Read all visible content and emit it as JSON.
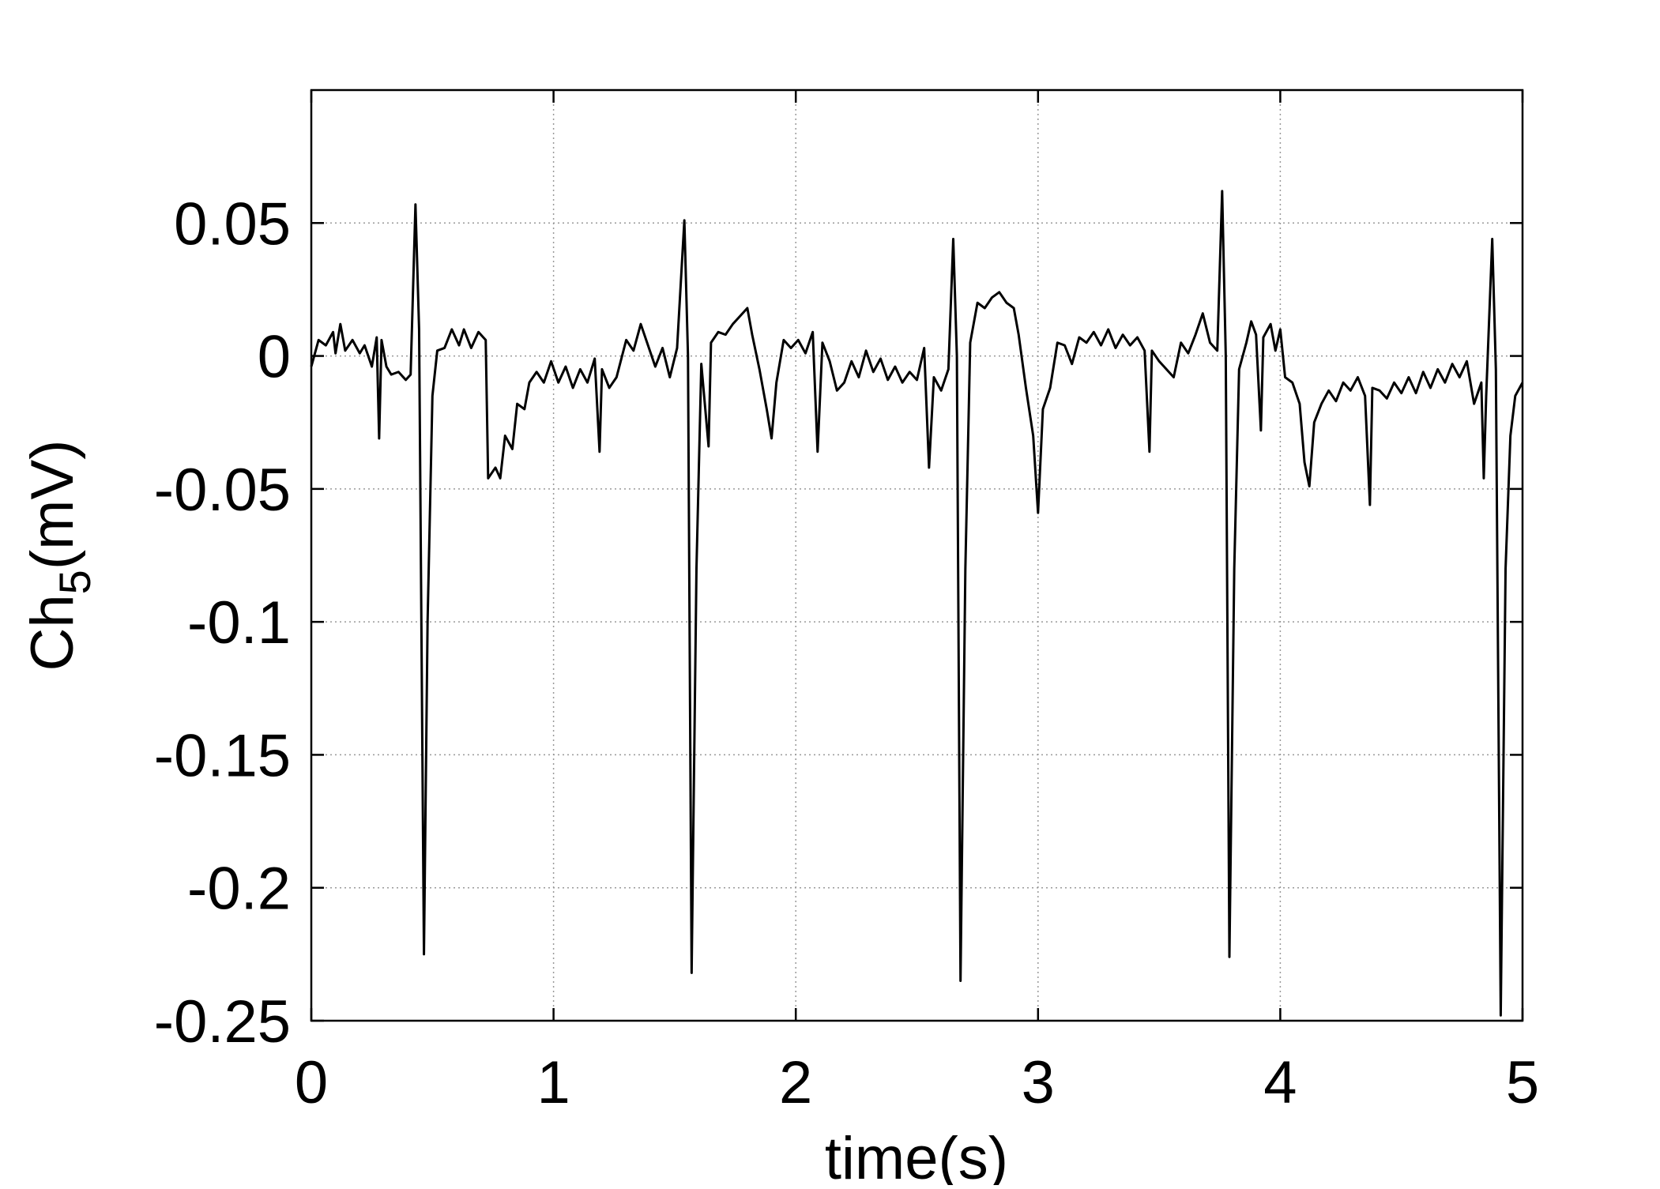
{
  "chart_data": {
    "type": "line",
    "xlabel": "time(s)",
    "ylabel": [
      "Ch",
      "5",
      "(mV)"
    ],
    "xlim": [
      0,
      5
    ],
    "ylim": [
      -0.25,
      0.1
    ],
    "xticks": [
      0,
      1,
      2,
      3,
      4,
      5
    ],
    "yticks": [
      -0.25,
      -0.2,
      -0.15,
      -0.1,
      -0.05,
      0,
      0.05
    ],
    "grid": true,
    "color": "#000000",
    "x": [
      0,
      0.03,
      0.06,
      0.09,
      0.1,
      0.12,
      0.14,
      0.17,
      0.2,
      0.22,
      0.25,
      0.27,
      0.28,
      0.29,
      0.31,
      0.33,
      0.36,
      0.39,
      0.41,
      0.43,
      0.445,
      0.465,
      0.48,
      0.5,
      0.52,
      0.55,
      0.58,
      0.61,
      0.63,
      0.66,
      0.69,
      0.72,
      0.73,
      0.76,
      0.78,
      0.8,
      0.83,
      0.85,
      0.88,
      0.9,
      0.93,
      0.96,
      0.99,
      1.02,
      1.05,
      1.08,
      1.11,
      1.14,
      1.17,
      1.19,
      1.2,
      1.23,
      1.26,
      1.3,
      1.33,
      1.36,
      1.39,
      1.42,
      1.45,
      1.48,
      1.51,
      1.54,
      1.555,
      1.57,
      1.59,
      1.61,
      1.64,
      1.65,
      1.68,
      1.71,
      1.74,
      1.77,
      1.8,
      1.82,
      1.85,
      1.88,
      1.9,
      1.92,
      1.95,
      1.98,
      2.01,
      2.04,
      2.07,
      2.09,
      2.11,
      2.14,
      2.17,
      2.2,
      2.23,
      2.26,
      2.29,
      2.32,
      2.35,
      2.38,
      2.41,
      2.44,
      2.47,
      2.5,
      2.53,
      2.55,
      2.57,
      2.6,
      2.63,
      2.65,
      2.665,
      2.68,
      2.7,
      2.72,
      2.75,
      2.78,
      2.81,
      2.84,
      2.87,
      2.9,
      2.92,
      2.95,
      2.98,
      3.0,
      3.02,
      3.05,
      3.08,
      3.11,
      3.14,
      3.17,
      3.2,
      3.23,
      3.26,
      3.29,
      3.32,
      3.35,
      3.38,
      3.41,
      3.44,
      3.46,
      3.47,
      3.5,
      3.53,
      3.56,
      3.59,
      3.62,
      3.65,
      3.68,
      3.71,
      3.74,
      3.76,
      3.775,
      3.79,
      3.81,
      3.83,
      3.86,
      3.88,
      3.9,
      3.92,
      3.93,
      3.96,
      3.98,
      4.0,
      4.02,
      4.05,
      4.08,
      4.1,
      4.12,
      4.14,
      4.17,
      4.2,
      4.23,
      4.26,
      4.29,
      4.32,
      4.35,
      4.37,
      4.38,
      4.41,
      4.44,
      4.47,
      4.5,
      4.53,
      4.56,
      4.59,
      4.62,
      4.65,
      4.68,
      4.71,
      4.74,
      4.77,
      4.8,
      4.83,
      4.84,
      4.85,
      4.875,
      4.89,
      4.91,
      4.93,
      4.95,
      4.97,
      5.0
    ],
    "values": [
      -0.004,
      0.006,
      0.004,
      0.009,
      0.001,
      0.012,
      0.002,
      0.006,
      0.001,
      0.004,
      -0.004,
      0.007,
      -0.031,
      0.006,
      -0.004,
      -0.007,
      -0.006,
      -0.009,
      -0.007,
      0.057,
      0.01,
      -0.225,
      -0.1,
      -0.015,
      0.002,
      0.003,
      0.01,
      0.004,
      0.01,
      0.003,
      0.009,
      0.006,
      -0.046,
      -0.042,
      -0.046,
      -0.03,
      -0.035,
      -0.018,
      -0.02,
      -0.01,
      -0.006,
      -0.01,
      -0.002,
      -0.01,
      -0.004,
      -0.012,
      -0.005,
      -0.01,
      -0.001,
      -0.036,
      -0.005,
      -0.012,
      -0.008,
      0.006,
      0.002,
      0.012,
      0.004,
      -0.004,
      0.003,
      -0.008,
      0.003,
      0.051,
      0.0,
      -0.232,
      -0.08,
      -0.003,
      -0.034,
      0.005,
      0.009,
      0.008,
      0.012,
      0.015,
      0.018,
      0.008,
      -0.005,
      -0.02,
      -0.031,
      -0.01,
      0.006,
      0.003,
      0.006,
      0.001,
      0.009,
      -0.036,
      0.005,
      -0.002,
      -0.013,
      -0.01,
      -0.002,
      -0.008,
      0.002,
      -0.006,
      -0.001,
      -0.009,
      -0.004,
      -0.01,
      -0.006,
      -0.009,
      0.003,
      -0.042,
      -0.008,
      -0.013,
      -0.005,
      0.044,
      0.0,
      -0.235,
      -0.08,
      0.005,
      0.02,
      0.018,
      0.022,
      0.024,
      0.02,
      0.018,
      0.008,
      -0.012,
      -0.03,
      -0.059,
      -0.02,
      -0.012,
      0.005,
      0.004,
      -0.003,
      0.007,
      0.005,
      0.009,
      0.004,
      0.01,
      0.003,
      0.008,
      0.004,
      0.007,
      0.002,
      -0.036,
      0.002,
      -0.002,
      -0.005,
      -0.008,
      0.005,
      0.001,
      0.008,
      0.016,
      0.005,
      0.002,
      0.062,
      0.0,
      -0.226,
      -0.08,
      -0.005,
      0.005,
      0.013,
      0.008,
      -0.028,
      0.007,
      0.012,
      0.002,
      0.01,
      -0.008,
      -0.01,
      -0.018,
      -0.04,
      -0.049,
      -0.025,
      -0.018,
      -0.013,
      -0.017,
      -0.01,
      -0.013,
      -0.008,
      -0.015,
      -0.056,
      -0.012,
      -0.013,
      -0.016,
      -0.01,
      -0.014,
      -0.008,
      -0.014,
      -0.006,
      -0.012,
      -0.005,
      -0.01,
      -0.003,
      -0.008,
      -0.002,
      -0.018,
      -0.01,
      -0.046,
      -0.015,
      0.044,
      -0.005,
      -0.248,
      -0.08,
      -0.03,
      -0.015,
      -0.01
    ]
  }
}
